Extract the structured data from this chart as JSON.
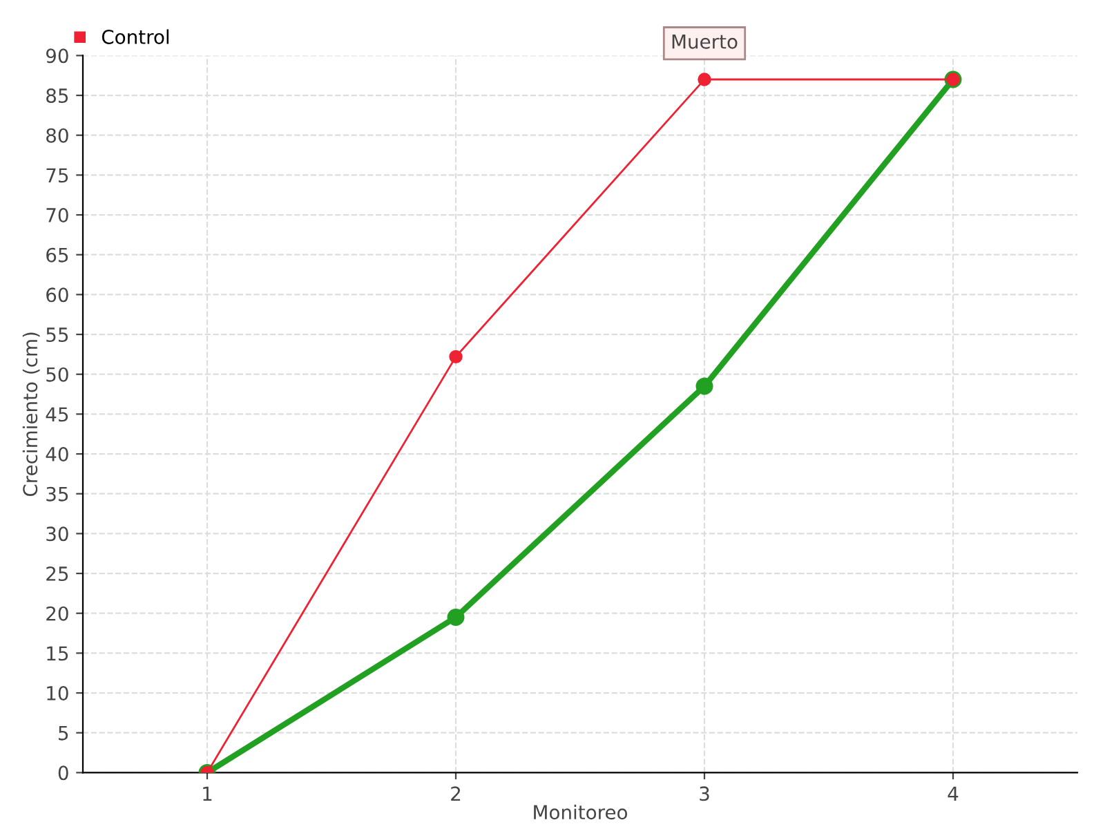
{
  "chart_data": {
    "type": "line",
    "xlabel": "Monitoreo",
    "ylabel": "Crecimiento (cm)",
    "x": [
      1,
      2,
      3,
      4
    ],
    "series": [
      {
        "color": "#22a022",
        "values": [
          0,
          19.5,
          48.5,
          87
        ]
      },
      {
        "name": "Control",
        "color": "#ee2233",
        "values": [
          0,
          52.2,
          87,
          87
        ]
      }
    ],
    "xlim": [
      0.5,
      4.5
    ],
    "xticks": [
      1,
      2,
      3,
      4
    ],
    "ylim": [
      0,
      90
    ],
    "yticks": [
      0,
      5,
      10,
      15,
      20,
      25,
      30,
      35,
      40,
      45,
      50,
      55,
      60,
      65,
      70,
      75,
      80,
      85,
      90
    ],
    "grid": true,
    "legend": "top left",
    "marker": "circle",
    "annotations": [
      {
        "text": "Muerto",
        "x": 3,
        "y": 87
      }
    ]
  }
}
